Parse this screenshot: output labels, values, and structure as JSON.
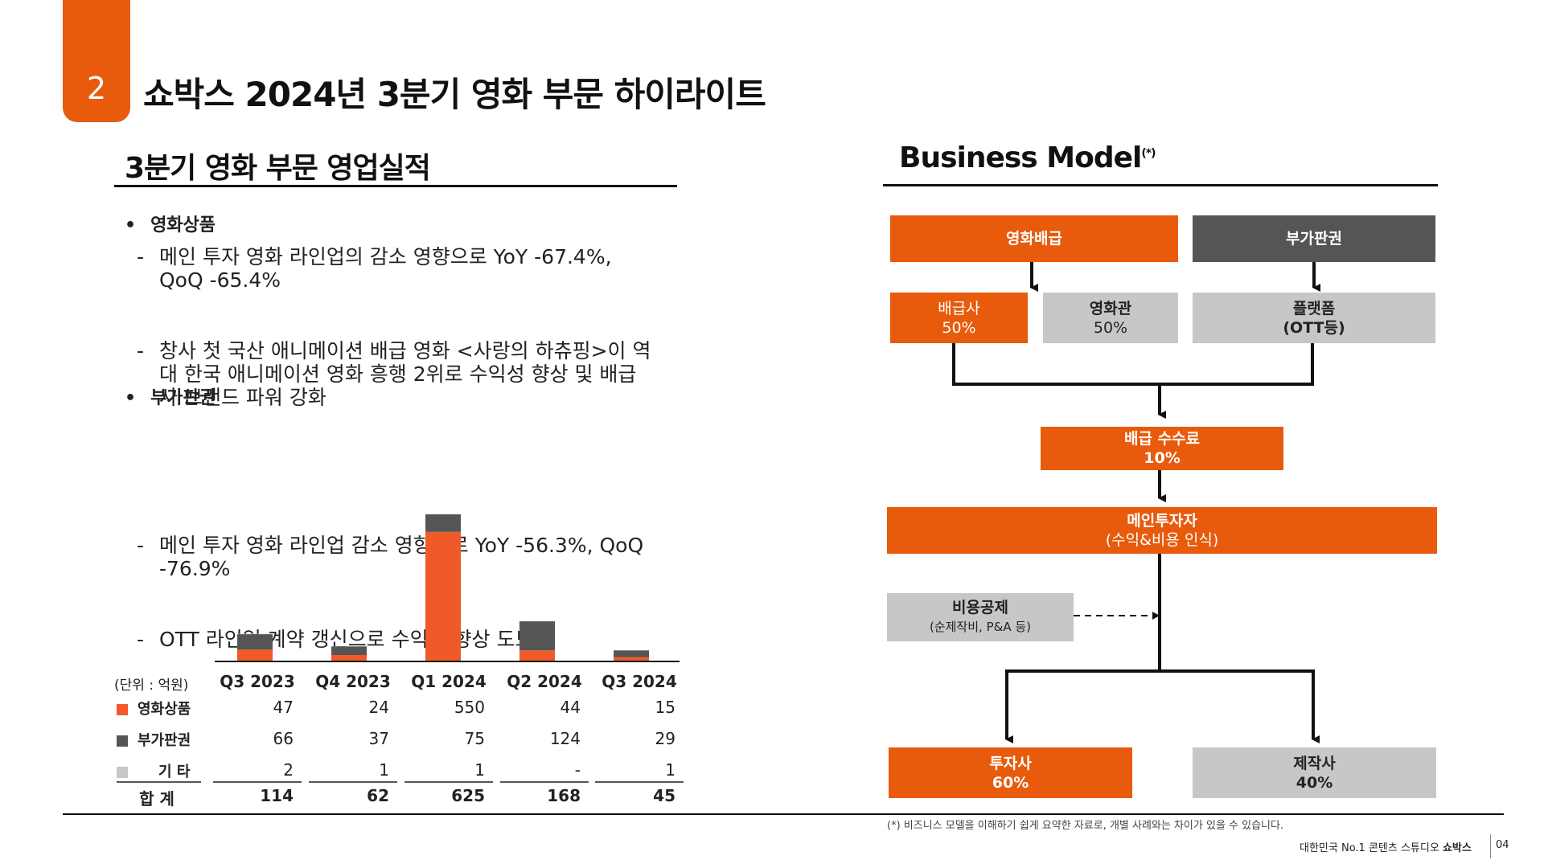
{
  "header": {
    "badge": "2",
    "title": "쇼박스 2024년 3분기 영화 부문 하이라이트"
  },
  "left": {
    "title": "3분기 영화 부문 영업실적",
    "bullets": [
      {
        "head": "영화상품",
        "items": [
          "메인 투자 영화 라인업의 감소 영향으로 YoY -67.4%, QoQ -65.4%",
          "창사 첫 국산 애니메이션 배급 영화 <사랑의 하츄핑>이 역대 한국 애니메이션 영화 흥행 2위로 수익성 향상 및 배급사 브랜드 파워 강화"
        ]
      },
      {
        "head": "부가판권",
        "items": [
          "메인 투자 영화 라인업 감소 영향으로 YoY -56.3%, QoQ -76.9%",
          "OTT 라인업 계약 갱신으로 수익성 향상 도모"
        ]
      }
    ]
  },
  "chart_data": {
    "type": "bar",
    "stacked": true,
    "unit_label": "(단위 : 억원)",
    "categories": [
      "Q3 2023",
      "Q4 2023",
      "Q1 2024",
      "Q2 2024",
      "Q3 2024"
    ],
    "series": [
      {
        "name": "영화상품",
        "color": "#f05a28",
        "values": [
          47,
          24,
          550,
          44,
          15
        ],
        "labels": [
          "47",
          "24",
          "550",
          "44",
          "15"
        ]
      },
      {
        "name": "부가판권",
        "color": "#555555",
        "values": [
          66,
          37,
          75,
          124,
          29
        ],
        "labels": [
          "66",
          "37",
          "75",
          "124",
          "29"
        ]
      },
      {
        "name": "기 타",
        "color": "#c7c7c7",
        "values": [
          2,
          1,
          1,
          0,
          1
        ],
        "labels": [
          "2",
          "1",
          "1",
          "-",
          "1"
        ]
      }
    ],
    "totals_label": "합 계",
    "totals": [
      "114",
      "62",
      "625",
      "168",
      "45"
    ],
    "ylim": [
      0,
      625
    ]
  },
  "right": {
    "title": "Business Model",
    "title_note": "(*)",
    "boxes": {
      "distribution": "영화배급",
      "ancillary": "부가판권",
      "distributor": {
        "line1": "배급사",
        "line2": "50%"
      },
      "theater": {
        "line1": "영화관",
        "line2": "50%"
      },
      "platform": {
        "line1": "플랫폼",
        "line2": "(OTT등)"
      },
      "fee": {
        "line1": "배급 수수료",
        "line2": "10%"
      },
      "main_investor": {
        "line1": "메인투자자",
        "line2": "(수익&비용 인식)"
      },
      "cost": {
        "line1": "비용공제",
        "line2": "(순제작비, P&A 등)"
      },
      "investor": {
        "line1": "투자사",
        "line2": "60%"
      },
      "producer": {
        "line1": "제작사",
        "line2": "40%"
      }
    },
    "footnote": "(*) 비즈니스 모델을 이해하기 쉽게 요약한 자료로, 개별 사례와는 차이가 있을 수 있습니다."
  },
  "footer": {
    "tagline": "대한민국 No.1 콘텐츠 스튜디오",
    "brand": "쇼박스",
    "page": "04"
  }
}
